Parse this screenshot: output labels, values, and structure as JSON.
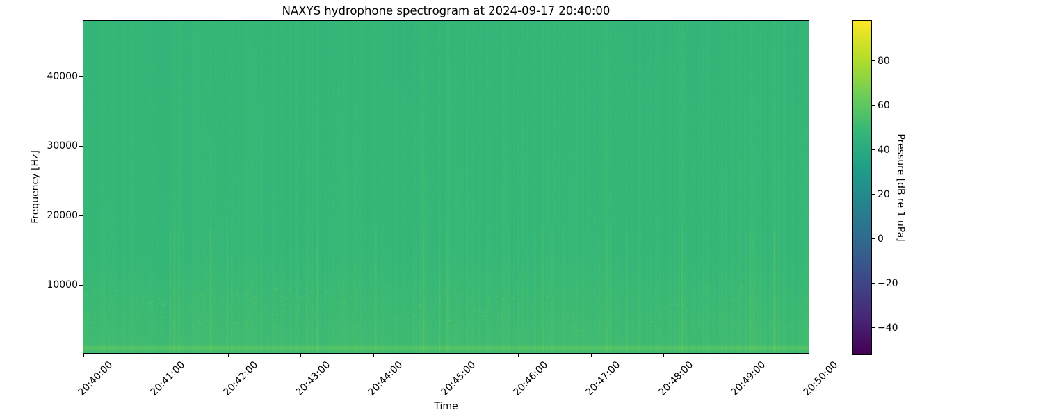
{
  "figure": {
    "title": "NAXYS hydrophone spectrogram at 2024-09-17 20:40:00",
    "xlabel": "Time",
    "ylabel": "Frequency [Hz]",
    "colorbar_label": "Pressure [dB re 1 uPa]"
  },
  "chart_data": {
    "type": "heatmap",
    "subtype": "spectrogram",
    "title": "NAXYS hydrophone spectrogram at 2024-09-17 20:40:00",
    "xlabel": "Time",
    "ylabel": "Frequency [Hz]",
    "x_tick_labels": [
      "20:40:00",
      "20:41:00",
      "20:42:00",
      "20:43:00",
      "20:44:00",
      "20:45:00",
      "20:46:00",
      "20:47:00",
      "20:48:00",
      "20:49:00",
      "20:50:00"
    ],
    "x_range": [
      "20:40:00",
      "20:50:00"
    ],
    "y_tick_values": [
      10000,
      20000,
      30000,
      40000
    ],
    "freq_range_hz": [
      200,
      48000
    ],
    "grid": false,
    "colormap": "viridis",
    "colorbar": {
      "label": "Pressure [dB re 1 uPa]",
      "tick_values": [
        80,
        60,
        40,
        20,
        0,
        -20,
        -40
      ],
      "tick_labels": [
        "80",
        "60",
        "40",
        "20",
        "0",
        "−20",
        "−40"
      ],
      "vmin": -52,
      "vmax": 98,
      "position": "right"
    },
    "viridis_stops": [
      "#440154",
      "#482878",
      "#3e4989",
      "#31688e",
      "#26828e",
      "#1f9e89",
      "#35b779",
      "#6ece58",
      "#b5de2b",
      "#fde725"
    ],
    "content_summary": {
      "background_level_db": 48,
      "low_frequency_level_db": 51,
      "bottom_bright_band": {
        "center_hz": 900,
        "level_db": 57
      },
      "texture": "near-uniform broadband noise around 48-52 dB with fine vertical time striations, occasional brighter transient columns, small bright speckles between 3-10 kHz, and a thin brighter band near the lowest frequencies"
    },
    "render": {
      "seed": 1337,
      "base_db": 47.8,
      "tilt_db": 1.2,
      "low_freq_knee_hz": 15000,
      "low_freq_boost_db": 2.8,
      "bottom_band_center_hz": 900,
      "bottom_band_width_hz": 300,
      "bottom_band_db": 6.5,
      "column_noise_db": 1.6,
      "pixel_noise_db": 0.9,
      "transient_prob": 0.035,
      "transient_db": 5.0,
      "speckle_band_hz": [
        3000,
        10000
      ],
      "speckle_db": 6.0,
      "speckle_count": 700
    }
  }
}
